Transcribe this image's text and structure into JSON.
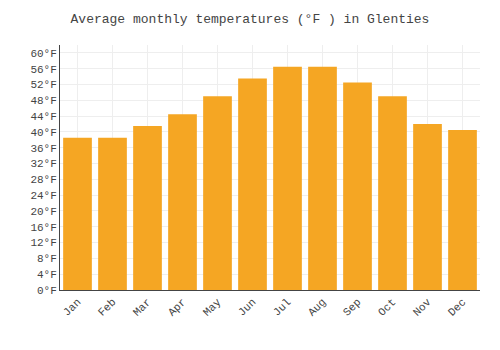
{
  "chart_data": {
    "type": "bar",
    "title": "Average monthly temperatures (°F ) in Glenties",
    "categories": [
      "Jan",
      "Feb",
      "Mar",
      "Apr",
      "May",
      "Jun",
      "Jul",
      "Aug",
      "Sep",
      "Oct",
      "Nov",
      "Dec"
    ],
    "values": [
      38.5,
      38.5,
      41.5,
      44.5,
      49.0,
      53.5,
      56.5,
      56.5,
      52.5,
      49.0,
      42.0,
      40.5
    ],
    "color": "#F5A623",
    "ylim": [
      0,
      62
    ],
    "yticks": [
      {
        "value": 0,
        "label": "0°F"
      },
      {
        "value": 4,
        "label": "4°F"
      },
      {
        "value": 8,
        "label": "8°F"
      },
      {
        "value": 12,
        "label": "12°F"
      },
      {
        "value": 16,
        "label": "16°F"
      },
      {
        "value": 20,
        "label": "20°F"
      },
      {
        "value": 24,
        "label": "24°F"
      },
      {
        "value": 28,
        "label": "28°F"
      },
      {
        "value": 32,
        "label": "32°F"
      },
      {
        "value": 36,
        "label": "36°F"
      },
      {
        "value": 40,
        "label": "40°F"
      },
      {
        "value": 44,
        "label": "44°F"
      },
      {
        "value": 48,
        "label": "48°F"
      },
      {
        "value": 52,
        "label": "52°F"
      },
      {
        "value": 56,
        "label": "56°F"
      },
      {
        "value": 60,
        "label": "60°F"
      }
    ],
    "grid": true
  }
}
